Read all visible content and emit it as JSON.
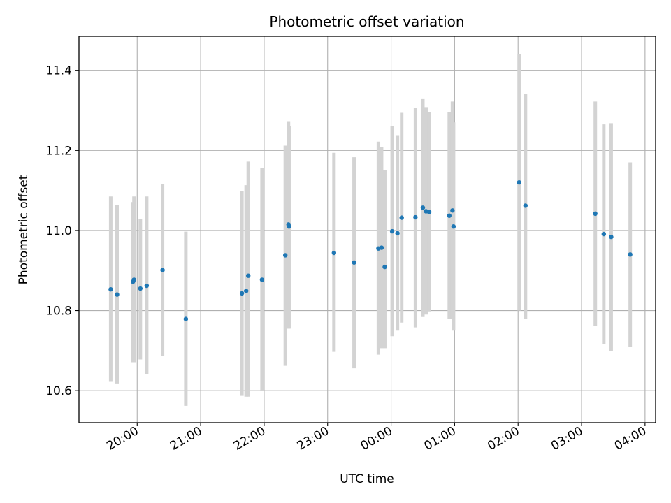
{
  "chart_data": {
    "type": "scatter",
    "title": "Photometric offset variation",
    "xlabel": "UTC time",
    "ylabel": "Photometric offset",
    "x_axis": "time",
    "xlim": [
      "2000-01-01T19:05:00",
      "2000-01-02T04:10:00"
    ],
    "ylim": [
      10.52,
      11.485
    ],
    "xticks": [
      {
        "t": "2000-01-01T20:00:00",
        "label": "20:00"
      },
      {
        "t": "2000-01-01T21:00:00",
        "label": "21:00"
      },
      {
        "t": "2000-01-01T22:00:00",
        "label": "22:00"
      },
      {
        "t": "2000-01-01T23:00:00",
        "label": "23:00"
      },
      {
        "t": "2000-01-02T00:00:00",
        "label": "00:00"
      },
      {
        "t": "2000-01-02T01:00:00",
        "label": "01:00"
      },
      {
        "t": "2000-01-02T02:00:00",
        "label": "02:00"
      },
      {
        "t": "2000-01-02T03:00:00",
        "label": "03:00"
      },
      {
        "t": "2000-01-02T04:00:00",
        "label": "04:00"
      }
    ],
    "yticks": [
      {
        "v": 10.6,
        "label": "10.6"
      },
      {
        "v": 10.8,
        "label": "10.8"
      },
      {
        "v": 11.0,
        "label": "11.0"
      },
      {
        "v": 11.2,
        "label": "11.2"
      },
      {
        "v": 11.4,
        "label": "11.4"
      }
    ],
    "grid": true,
    "marker_color": "#1f77b4",
    "errorbar_color": "#d3d3d3",
    "points": [
      {
        "t": "2000-01-01T19:35:00",
        "y": 10.853,
        "lo": 10.622,
        "hi": 11.085
      },
      {
        "t": "2000-01-01T19:41:00",
        "y": 10.84,
        "lo": 10.618,
        "hi": 11.064
      },
      {
        "t": "2000-01-01T19:56:00",
        "y": 10.872,
        "lo": 10.671,
        "hi": 11.071
      },
      {
        "t": "2000-01-01T19:57:00",
        "y": 10.877,
        "lo": 10.671,
        "hi": 11.085
      },
      {
        "t": "2000-01-01T20:03:00",
        "y": 10.855,
        "lo": 10.678,
        "hi": 11.029
      },
      {
        "t": "2000-01-01T20:09:00",
        "y": 10.862,
        "lo": 10.641,
        "hi": 11.085
      },
      {
        "t": "2000-01-01T20:24:00",
        "y": 10.901,
        "lo": 10.687,
        "hi": 11.115
      },
      {
        "t": "2000-01-01T20:46:00",
        "y": 10.779,
        "lo": 10.562,
        "hi": 10.997
      },
      {
        "t": "2000-01-01T21:39:00",
        "y": 10.843,
        "lo": 10.587,
        "hi": 11.099
      },
      {
        "t": "2000-01-01T21:43:00",
        "y": 10.849,
        "lo": 10.585,
        "hi": 11.113
      },
      {
        "t": "2000-01-01T21:45:00",
        "y": 10.887,
        "lo": 10.585,
        "hi": 11.172
      },
      {
        "t": "2000-01-01T21:58:00",
        "y": 10.877,
        "lo": 10.599,
        "hi": 11.157
      },
      {
        "t": "2000-01-01T22:20:00",
        "y": 10.938,
        "lo": 10.662,
        "hi": 11.212
      },
      {
        "t": "2000-01-01T22:23:00",
        "y": 11.015,
        "lo": 10.755,
        "hi": 11.273
      },
      {
        "t": "2000-01-01T22:23:30",
        "y": 11.01,
        "lo": 10.755,
        "hi": 11.26
      },
      {
        "t": "2000-01-01T23:06:00",
        "y": 10.944,
        "lo": 10.697,
        "hi": 11.194
      },
      {
        "t": "2000-01-01T23:25:00",
        "y": 10.92,
        "lo": 10.656,
        "hi": 11.183
      },
      {
        "t": "2000-01-01T23:48:00",
        "y": 10.955,
        "lo": 10.69,
        "hi": 11.222
      },
      {
        "t": "2000-01-01T23:51:00",
        "y": 10.957,
        "lo": 10.706,
        "hi": 11.209
      },
      {
        "t": "2000-01-01T23:54:00",
        "y": 10.909,
        "lo": 10.706,
        "hi": 11.151
      },
      {
        "t": "2000-01-02T00:01:00",
        "y": 10.998,
        "lo": 10.736,
        "hi": 11.261
      },
      {
        "t": "2000-01-02T00:06:00",
        "y": 10.993,
        "lo": 10.75,
        "hi": 11.238
      },
      {
        "t": "2000-01-02T00:10:00",
        "y": 11.032,
        "lo": 10.77,
        "hi": 11.294
      },
      {
        "t": "2000-01-02T00:23:00",
        "y": 11.033,
        "lo": 10.758,
        "hi": 11.307
      },
      {
        "t": "2000-01-02T00:30:00",
        "y": 11.057,
        "lo": 10.784,
        "hi": 11.33
      },
      {
        "t": "2000-01-02T00:33:00",
        "y": 11.048,
        "lo": 10.79,
        "hi": 11.308
      },
      {
        "t": "2000-01-02T00:36:00",
        "y": 11.046,
        "lo": 10.798,
        "hi": 11.295
      },
      {
        "t": "2000-01-02T00:55:00",
        "y": 11.037,
        "lo": 10.779,
        "hi": 11.295
      },
      {
        "t": "2000-01-02T00:58:00",
        "y": 11.05,
        "lo": 10.779,
        "hi": 11.322
      },
      {
        "t": "2000-01-02T00:59:00",
        "y": 11.01,
        "lo": 10.75,
        "hi": 11.27
      },
      {
        "t": "2000-01-02T02:01:00",
        "y": 11.12,
        "lo": 10.8,
        "hi": 11.44
      },
      {
        "t": "2000-01-02T02:07:00",
        "y": 11.062,
        "lo": 10.78,
        "hi": 11.342
      },
      {
        "t": "2000-01-02T03:13:00",
        "y": 11.042,
        "lo": 10.762,
        "hi": 11.322
      },
      {
        "t": "2000-01-02T03:21:00",
        "y": 10.991,
        "lo": 10.717,
        "hi": 11.265
      },
      {
        "t": "2000-01-02T03:28:00",
        "y": 10.984,
        "lo": 10.698,
        "hi": 11.268
      },
      {
        "t": "2000-01-02T03:46:00",
        "y": 10.94,
        "lo": 10.71,
        "hi": 11.17
      }
    ]
  }
}
